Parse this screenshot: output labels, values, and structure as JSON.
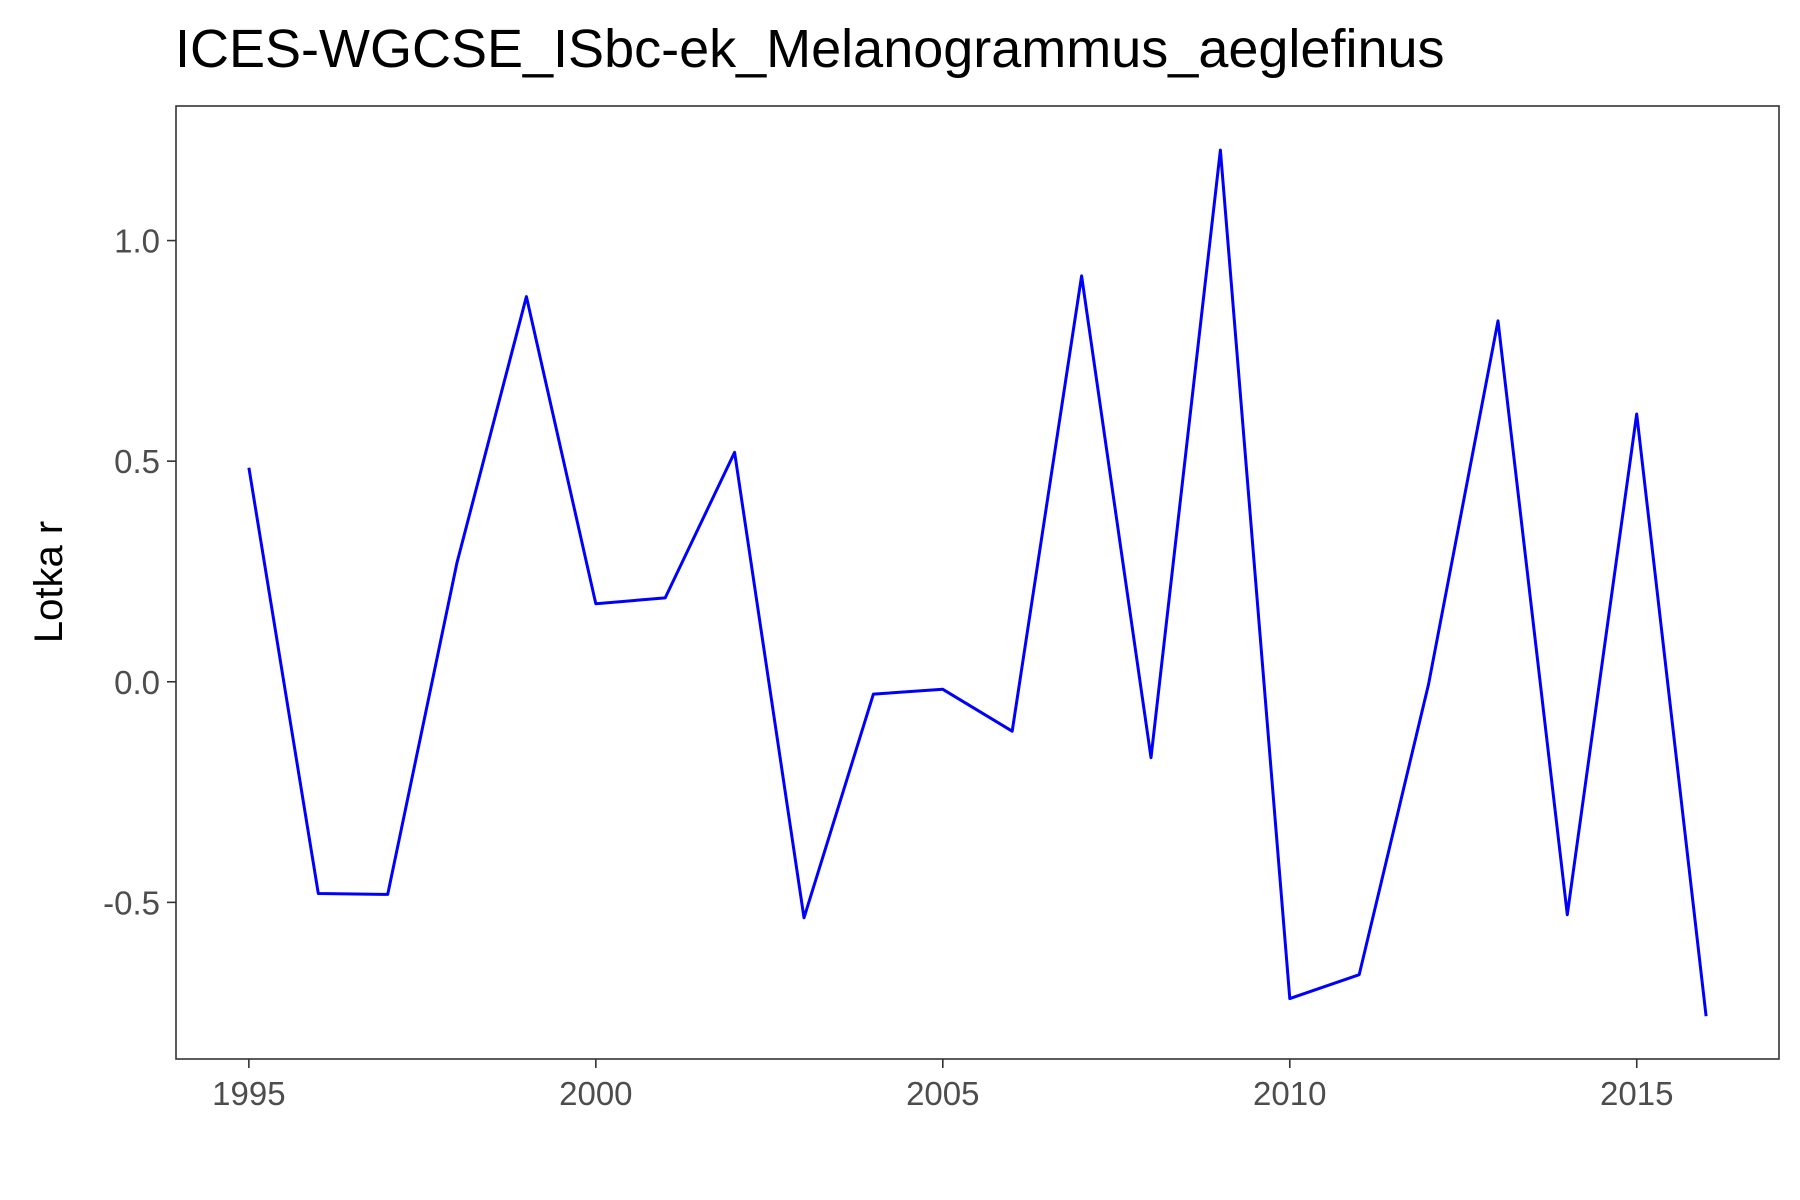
{
  "chart_data": {
    "type": "line",
    "title": "ICES-WGCSE_ISbc-ek_Melanogrammus_aeglefinus",
    "xlabel": "",
    "ylabel": "Lotka r",
    "xlim": [
      1993.95,
      2017.05
    ],
    "ylim": [
      -0.855,
      1.305
    ],
    "x_ticks": [
      1995,
      2000,
      2005,
      2010,
      2015
    ],
    "x_tick_labels": [
      "1995",
      "2000",
      "2005",
      "2010",
      "2015"
    ],
    "y_ticks": [
      -0.5,
      0.0,
      0.5,
      1.0
    ],
    "y_tick_labels": [
      "-0.5",
      "0.0",
      "0.5",
      "1.0"
    ],
    "grid": false,
    "line_color": "#0000ff",
    "series": [
      {
        "x": [
          1995,
          1996,
          1997,
          1998,
          1999,
          2000,
          2001,
          2002,
          2003,
          2004,
          2005,
          2006,
          2007,
          2008,
          2009,
          2010,
          2011,
          2012,
          2013,
          2014,
          2015,
          2016
        ],
        "values": [
          0.485,
          -0.48,
          -0.482,
          0.27,
          0.873,
          0.177,
          0.19,
          0.52,
          -0.535,
          -0.028,
          -0.017,
          -0.112,
          0.92,
          -0.172,
          1.205,
          -0.718,
          -0.664,
          -0.005,
          0.818,
          -0.528,
          0.607,
          -0.758
        ]
      }
    ]
  }
}
